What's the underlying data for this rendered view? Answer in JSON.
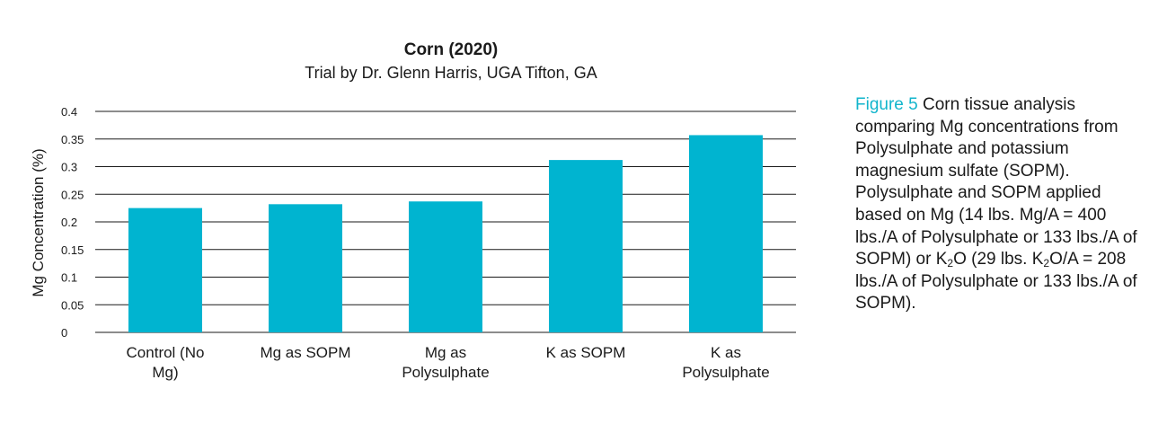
{
  "chart_data": {
    "type": "bar",
    "title": "Corn (2020)",
    "subtitle": "Trial by Dr. Glenn Harris, UGA Tifton, GA",
    "xlabel": "",
    "ylabel": "Mg Concentration (%)",
    "categories": [
      [
        "Control (No",
        "Mg)"
      ],
      [
        "Mg as SOPM"
      ],
      [
        "Mg as",
        "Polysulphate"
      ],
      [
        "K as SOPM"
      ],
      [
        "K as",
        "Polysulphate"
      ]
    ],
    "values": [
      0.225,
      0.232,
      0.237,
      0.312,
      0.357
    ],
    "ylim": [
      0,
      0.4
    ],
    "yticks": [
      "0",
      "0.05",
      "0.1",
      "0.15",
      "0.2",
      "0.25",
      "0.3",
      "0.35",
      "0.4"
    ],
    "grid": true,
    "bar_color": "#00b4d0",
    "grid_color": "#1a1a1a"
  },
  "caption": {
    "figure_label": "Figure 5",
    "text_1": " Corn tissue analysis comparing Mg concentrations from Polysulphate and potassium magnesium sulfate (SOPM). Polysulphate and SOPM applied based on Mg (14 lbs. Mg/A = 400 lbs./A of Polysulphate or 133 lbs./A of SOPM) or K",
    "sub_1": "2",
    "text_2": "O (29 lbs. K",
    "sub_2": "2",
    "text_3": "O/A = 208 lbs./A of Polysulphate or 133 lbs./A of SOPM).",
    "accent_color": "#12b5cc"
  }
}
